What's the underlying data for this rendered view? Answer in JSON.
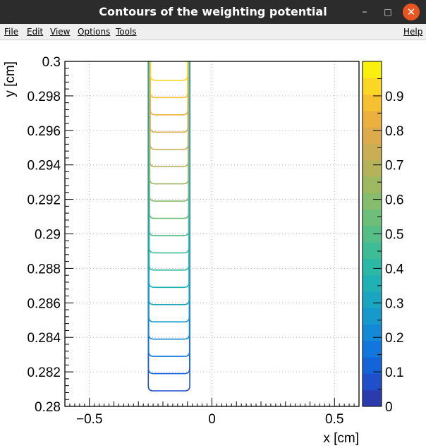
{
  "window": {
    "title": "Contours of the weighting potential"
  },
  "window_controls": {
    "minimize": "–",
    "maximize": "□",
    "close": "✕"
  },
  "menu": {
    "file": "File",
    "edit": "Edit",
    "view": "View",
    "options": "Options",
    "tools": "Tools",
    "help": "Help"
  },
  "colors": {
    "titlebar": "#2c2c2c",
    "close": "#e95420",
    "menubar": "#efefef"
  },
  "chart_data": {
    "type": "contour",
    "title": "",
    "xlabel": "x [cm]",
    "ylabel": "y [cm]",
    "xlim": [
      -0.6,
      0.6
    ],
    "ylim": [
      0.28,
      0.3
    ],
    "x_ticks": [
      -0.5,
      0,
      0.5
    ],
    "x_tick_labels": [
      "−0.5",
      "0",
      "0.5"
    ],
    "y_ticks": [
      0.28,
      0.282,
      0.284,
      0.286,
      0.288,
      0.29,
      0.292,
      0.294,
      0.296,
      0.298,
      0.3
    ],
    "y_tick_labels": [
      "0.28",
      "0.282",
      "0.284",
      "0.286",
      "0.288",
      "0.29",
      "0.292",
      "0.294",
      "0.296",
      "0.298",
      "0.3"
    ],
    "grid": true,
    "contour_levels": [
      0.05,
      0.1,
      0.15,
      0.2,
      0.25,
      0.3,
      0.35,
      0.4,
      0.45,
      0.5,
      0.55,
      0.6,
      0.65,
      0.7,
      0.75,
      0.8,
      0.85,
      0.9,
      0.95
    ],
    "contour_bottom_y": [
      0.2809,
      0.2819,
      0.2829,
      0.2839,
      0.2849,
      0.2859,
      0.2869,
      0.2879,
      0.2889,
      0.2899,
      0.2909,
      0.2919,
      0.2929,
      0.2939,
      0.2949,
      0.2959,
      0.2969,
      0.2979,
      0.2989
    ],
    "contour_x_range": [
      -0.25,
      -0.1
    ],
    "colorbar": {
      "range": [
        0,
        1
      ],
      "ticks": [
        0,
        0.1,
        0.2,
        0.3,
        0.4,
        0.5,
        0.6,
        0.7,
        0.8,
        0.9
      ],
      "tick_labels": [
        "0",
        "0.1",
        "0.2",
        "0.3",
        "0.4",
        "0.5",
        "0.6",
        "0.7",
        "0.8",
        "0.9"
      ],
      "colors": [
        "#2a3bab",
        "#1f4fc9",
        "#1464d8",
        "#1277dc",
        "#1489d6",
        "#1799cc",
        "#1aa6c0",
        "#1fb1b3",
        "#2bb8a4",
        "#3dbc95",
        "#55be86",
        "#6dbe79",
        "#86bc6d",
        "#9eb862",
        "#b5b35a",
        "#c9ae54",
        "#dcab4c",
        "#ecb03f",
        "#f6c130",
        "#fbd625",
        "#f9f00e"
      ]
    }
  }
}
